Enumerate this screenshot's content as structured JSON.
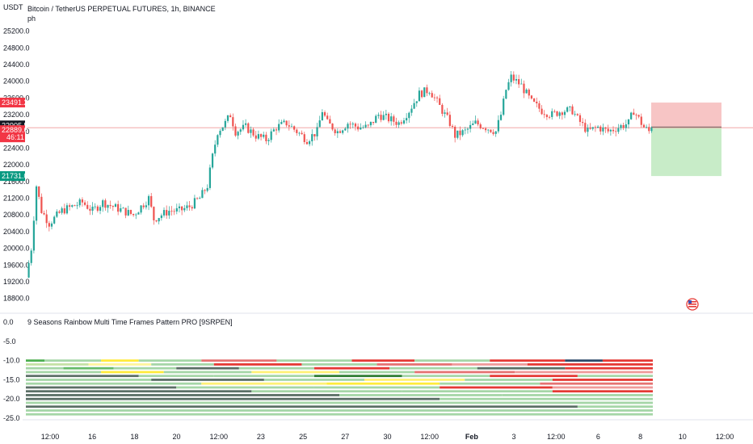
{
  "chart_data": [
    {
      "type": "candlestick",
      "title": "Bitcoin / TetherUS PERPETUAL FUTURES, 1h, BINANCE",
      "subtitle": "ph",
      "ylabel": "USDT",
      "ylim": [
        18600,
        25600
      ],
      "y_ticks": [
        "25200.0",
        "24800.0",
        "24400.0",
        "24000.0",
        "23600.0",
        "23200.0",
        "22800.0",
        "22400.0",
        "22000.0",
        "21600.0",
        "21200.0",
        "20800.0",
        "20400.0",
        "20000.0",
        "19600.0",
        "19200.0",
        "18800.0"
      ],
      "x_ticks": [
        {
          "label": "12:00",
          "bold": false
        },
        {
          "label": "16",
          "bold": false
        },
        {
          "label": "18",
          "bold": false
        },
        {
          "label": "20",
          "bold": false
        },
        {
          "label": "12:00",
          "bold": false
        },
        {
          "label": "23",
          "bold": false
        },
        {
          "label": "25",
          "bold": false
        },
        {
          "label": "27",
          "bold": false
        },
        {
          "label": "30",
          "bold": false
        },
        {
          "label": "12:00",
          "bold": false
        },
        {
          "label": "Feb",
          "bold": true
        },
        {
          "label": "3",
          "bold": false
        },
        {
          "label": "12:00",
          "bold": false
        },
        {
          "label": "6",
          "bold": false
        },
        {
          "label": "8",
          "bold": false
        },
        {
          "label": "10",
          "bold": false
        },
        {
          "label": "12:00",
          "bold": false
        }
      ],
      "price_path": [
        [
          0,
          19300
        ],
        [
          2,
          20000
        ],
        [
          4,
          21500
        ],
        [
          6,
          20900
        ],
        [
          9,
          20600
        ],
        [
          14,
          20900
        ],
        [
          18,
          21000
        ],
        [
          22,
          21100
        ],
        [
          26,
          20900
        ],
        [
          30,
          21100
        ],
        [
          34,
          21000
        ],
        [
          38,
          20900
        ],
        [
          42,
          20800
        ],
        [
          45,
          21000
        ],
        [
          48,
          21200
        ],
        [
          50,
          20700
        ],
        [
          53,
          20800
        ],
        [
          56,
          20900
        ],
        [
          60,
          20900
        ],
        [
          64,
          21000
        ],
        [
          68,
          21200
        ],
        [
          71,
          21500
        ],
        [
          73,
          22200
        ],
        [
          75,
          22800
        ],
        [
          78,
          23000
        ],
        [
          80,
          23200
        ],
        [
          82,
          22800
        ],
        [
          86,
          22900
        ],
        [
          90,
          22700
        ],
        [
          94,
          22600
        ],
        [
          98,
          22900
        ],
        [
          102,
          23000
        ],
        [
          106,
          22800
        ],
        [
          110,
          22600
        ],
        [
          114,
          22800
        ],
        [
          116,
          23300
        ],
        [
          118,
          23000
        ],
        [
          122,
          22800
        ],
        [
          126,
          23000
        ],
        [
          130,
          22900
        ],
        [
          134,
          22900
        ],
        [
          138,
          23200
        ],
        [
          142,
          23100
        ],
        [
          146,
          23000
        ],
        [
          150,
          23300
        ],
        [
          154,
          23700
        ],
        [
          158,
          23800
        ],
        [
          162,
          23400
        ],
        [
          166,
          23000
        ],
        [
          168,
          22700
        ],
        [
          172,
          22800
        ],
        [
          176,
          23000
        ],
        [
          180,
          22900
        ],
        [
          184,
          22800
        ],
        [
          186,
          23200
        ],
        [
          188,
          23800
        ],
        [
          190,
          24100
        ],
        [
          194,
          23900
        ],
        [
          198,
          23500
        ],
        [
          202,
          23300
        ],
        [
          206,
          23200
        ],
        [
          210,
          23300
        ],
        [
          214,
          23300
        ],
        [
          216,
          23100
        ],
        [
          220,
          22800
        ],
        [
          224,
          22900
        ],
        [
          228,
          22800
        ],
        [
          232,
          22900
        ],
        [
          236,
          23000
        ],
        [
          238,
          23300
        ],
        [
          240,
          23100
        ],
        [
          242,
          22900
        ],
        [
          244,
          22800
        ],
        [
          245,
          22889.6
        ]
      ],
      "volatility": 150,
      "last_price": "22889.6",
      "countdown": "46:11",
      "position": {
        "stop": "23491.2",
        "entry": "22905.5",
        "target": "21731.0",
        "stop_value": 23491.2,
        "entry_value": 22905.5,
        "target_value": 21731.0
      },
      "colors": {
        "up": "#26a69a",
        "down": "#ef5350",
        "stop_zone": "#f7c5c5",
        "target_zone": "#c8ecc8",
        "stop_tag": "#f23645",
        "target_tag": "#089981",
        "entry_tag": "#131722"
      }
    },
    {
      "type": "heatmap",
      "title": "9 Seasons Rainbow Multi Time Frames Pattern PRO [9SRPEN]",
      "ylim": [
        -25,
        1.5
      ],
      "y_ticks": [
        "0.0",
        "-5.0",
        "-10.0",
        "-15.0",
        "-20.0",
        "-25.0"
      ],
      "rows": [
        {
          "y": -10.0,
          "segments": [
            [
              0,
              3,
              "#4caf50"
            ],
            [
              3,
              12,
              "#a5d6a7"
            ],
            [
              12,
              18,
              "#ffeb3b"
            ],
            [
              18,
              28,
              "#a5d6a7"
            ],
            [
              28,
              40,
              "#e57373"
            ],
            [
              40,
              52,
              "#a5d6a7"
            ],
            [
              52,
              62,
              "#e53935"
            ],
            [
              62,
              74,
              "#a5d6a7"
            ],
            [
              74,
              86,
              "#e53935"
            ],
            [
              86,
              92,
              "#2e4a6b"
            ],
            [
              92,
              100,
              "#e53935"
            ]
          ]
        },
        {
          "y": -11.0,
          "segments": [
            [
              0,
              10,
              "#c5e1a5"
            ],
            [
              10,
              20,
              "#fff59d"
            ],
            [
              20,
              30,
              "#a5d6a7"
            ],
            [
              30,
              44,
              "#e53935"
            ],
            [
              44,
              56,
              "#a5d6a7"
            ],
            [
              56,
              68,
              "#e57373"
            ],
            [
              68,
              80,
              "#ef9a9a"
            ],
            [
              80,
              100,
              "#e53935"
            ]
          ]
        },
        {
          "y": -12.0,
          "segments": [
            [
              0,
              6,
              "#a5d6a7"
            ],
            [
              6,
              14,
              "#66bb6a"
            ],
            [
              14,
              24,
              "#a5d6a7"
            ],
            [
              24,
              34,
              "#5b6f66"
            ],
            [
              34,
              46,
              "#a5d6a7"
            ],
            [
              46,
              58,
              "#e53935"
            ],
            [
              58,
              72,
              "#a5d6a7"
            ],
            [
              72,
              86,
              "#5b6f66"
            ],
            [
              86,
              100,
              "#e53935"
            ]
          ]
        },
        {
          "y": -13.0,
          "segments": [
            [
              0,
              12,
              "#a5d6a7"
            ],
            [
              12,
              22,
              "#ffeb3b"
            ],
            [
              22,
              36,
              "#a5d6a7"
            ],
            [
              36,
              50,
              "#fff176"
            ],
            [
              50,
              62,
              "#a5d6a7"
            ],
            [
              62,
              78,
              "#e57373"
            ],
            [
              78,
              100,
              "#ef9a9a"
            ]
          ]
        },
        {
          "y": -14.0,
          "segments": [
            [
              0,
              18,
              "#5b6f66"
            ],
            [
              18,
              30,
              "#a5d6a7"
            ],
            [
              30,
              46,
              "#a5d6a7"
            ],
            [
              46,
              60,
              "#2e7d32"
            ],
            [
              60,
              74,
              "#a5d6a7"
            ],
            [
              74,
              88,
              "#e53935"
            ],
            [
              88,
              100,
              "#a5d6a7"
            ]
          ]
        },
        {
          "y": -15.0,
          "segments": [
            [
              0,
              20,
              "#a5d6a7"
            ],
            [
              20,
              38,
              "#5b6f66"
            ],
            [
              38,
              54,
              "#a5d6a7"
            ],
            [
              54,
              70,
              "#fff176"
            ],
            [
              70,
              84,
              "#a5d6a7"
            ],
            [
              84,
              100,
              "#e53935"
            ]
          ]
        },
        {
          "y": -16.0,
          "segments": [
            [
              0,
              28,
              "#a5d6a7"
            ],
            [
              28,
              48,
              "#fff176"
            ],
            [
              48,
              66,
              "#ffeb3b"
            ],
            [
              66,
              82,
              "#a5d6a7"
            ],
            [
              82,
              100,
              "#e57373"
            ]
          ]
        },
        {
          "y": -17.0,
          "segments": [
            [
              0,
              24,
              "#5b6f66"
            ],
            [
              24,
              46,
              "#a5d6a7"
            ],
            [
              46,
              66,
              "#a5d6a7"
            ],
            [
              66,
              84,
              "#e53935"
            ],
            [
              84,
              100,
              "#ef9a9a"
            ]
          ]
        },
        {
          "y": -18.0,
          "segments": [
            [
              0,
              36,
              "#5b6f66"
            ],
            [
              36,
              60,
              "#a5d6a7"
            ],
            [
              60,
              84,
              "#a5d6a7"
            ],
            [
              84,
              100,
              "#e53935"
            ]
          ]
        },
        {
          "y": -19.0,
          "segments": [
            [
              0,
              50,
              "#5b6f66"
            ],
            [
              50,
              76,
              "#a5d6a7"
            ],
            [
              76,
              100,
              "#a5d6a7"
            ]
          ]
        },
        {
          "y": -20.0,
          "segments": [
            [
              0,
              66,
              "#5b6f66"
            ],
            [
              66,
              100,
              "#a5d6a7"
            ]
          ]
        },
        {
          "y": -21.0,
          "segments": [
            [
              0,
              100,
              "#a5d6a7"
            ]
          ]
        },
        {
          "y": -22.0,
          "segments": [
            [
              0,
              88,
              "#5b6f66"
            ],
            [
              88,
              100,
              "#a5d6a7"
            ]
          ]
        },
        {
          "y": -23.0,
          "segments": [
            [
              0,
              100,
              "#a5d6a7"
            ]
          ]
        },
        {
          "y": -24.0,
          "segments": [
            [
              0,
              100,
              "#a5d6a7"
            ]
          ]
        }
      ],
      "x_extent": 100
    }
  ],
  "icons": {
    "flag": "us-flag-icon"
  }
}
